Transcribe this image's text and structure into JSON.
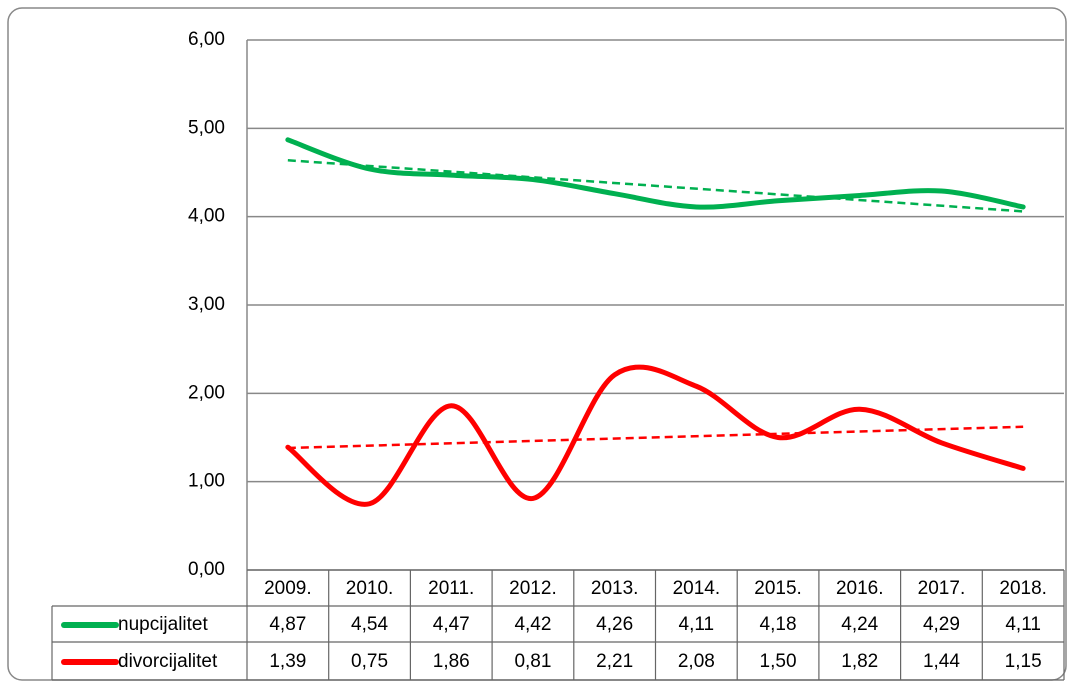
{
  "chart_data": {
    "type": "line",
    "categories": [
      "2009.",
      "2010.",
      "2011.",
      "2012.",
      "2013.",
      "2014.",
      "2015.",
      "2016.",
      "2017.",
      "2018."
    ],
    "series": [
      {
        "name": "nupcijalitet",
        "color": "#00b050",
        "values": [
          4.87,
          4.54,
          4.47,
          4.42,
          4.26,
          4.11,
          4.18,
          4.24,
          4.29,
          4.11
        ],
        "value_labels": [
          "4,87",
          "4,54",
          "4,47",
          "4,42",
          "4,26",
          "4,11",
          "4,18",
          "4,24",
          "4,29",
          "4,11"
        ]
      },
      {
        "name": "divorcijalitet",
        "color": "#ff0000",
        "values": [
          1.39,
          0.75,
          1.86,
          0.81,
          2.21,
          2.08,
          1.5,
          1.82,
          1.44,
          1.15
        ],
        "value_labels": [
          "1,39",
          "0,75",
          "1,86",
          "0,81",
          "2,21",
          "2,08",
          "1,50",
          "1,82",
          "1,44",
          "1,15"
        ]
      }
    ],
    "ylim": [
      0,
      6
    ],
    "yticks": [
      {
        "value": 0,
        "label": "0,00"
      },
      {
        "value": 1,
        "label": "1,00"
      },
      {
        "value": 2,
        "label": "2,00"
      },
      {
        "value": 3,
        "label": "3,00"
      },
      {
        "value": 4,
        "label": "4,00"
      },
      {
        "value": 5,
        "label": "5,00"
      },
      {
        "value": 6,
        "label": "6,00"
      }
    ],
    "grid": true,
    "trendline": true,
    "smooth": true
  }
}
